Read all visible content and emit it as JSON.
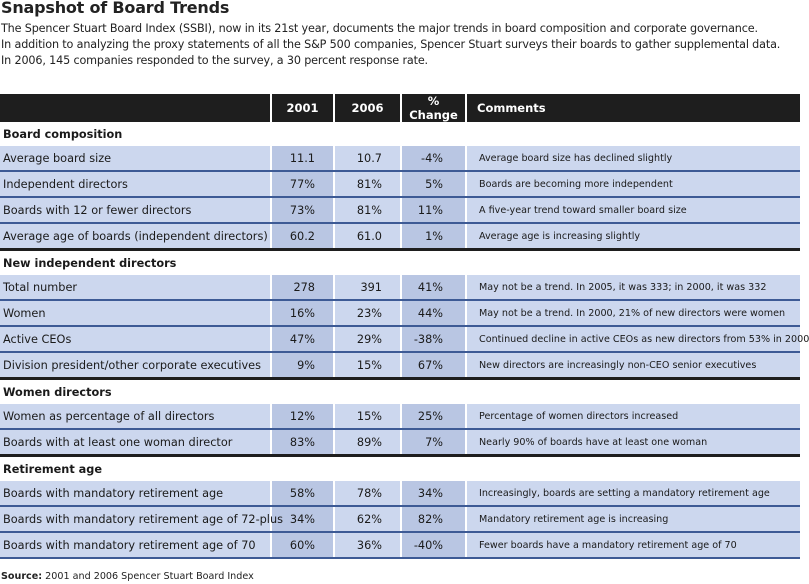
{
  "title": "Snapshot of Board Trends",
  "intro": [
    "The Spencer Stuart Board Index (SSBI), now in its 21st year, documents the major trends in board composition and corporate governance.",
    "In addition to analyzing the proxy statements of all the S&P 500 companies, Spencer Stuart surveys their boards to gather supplemental data.",
    "In 2006, 145 companies responded to the survey, a 30 percent response rate."
  ],
  "columns": [
    "",
    "2001",
    "2006",
    "% Change",
    "Comments"
  ],
  "sections": [
    {
      "heading": "Board composition",
      "rows": [
        {
          "label": "Average board size",
          "y2001": "11.1",
          "y2006": "10.7",
          "change": "-4%",
          "comment": "Average board size has declined slightly"
        },
        {
          "label": "Independent directors",
          "y2001": "77%",
          "y2006": "81%",
          "change": "5%",
          "comment": "Boards are becoming more independent"
        },
        {
          "label": "Boards with 12 or fewer directors",
          "y2001": "73%",
          "y2006": "81%",
          "change": "11%",
          "comment": "A five-year trend toward smaller board size"
        },
        {
          "label": "Average age of boards (independent directors)",
          "y2001": "60.2",
          "y2006": "61.0",
          "change": "1%",
          "comment": "Average age is increasing slightly"
        }
      ]
    },
    {
      "heading": "New independent directors",
      "rows": [
        {
          "label": "Total number",
          "y2001": "278",
          "y2006": "391",
          "change": "41%",
          "comment": "May not be a trend. In 2005, it was 333; in 2000, it was 332"
        },
        {
          "label": "Women",
          "y2001": "16%",
          "y2006": "23%",
          "change": "44%",
          "comment": "May not be a trend. In 2000, 21% of new directors were women"
        },
        {
          "label": "Active CEOs",
          "y2001": "47%",
          "y2006": "29%",
          "change": "-38%",
          "comment": "Continued decline in active CEOs as new directors from 53% in 2000"
        },
        {
          "label": "Division president/other corporate executives",
          "y2001": "9%",
          "y2006": "15%",
          "change": "67%",
          "comment": "New directors are increasingly non-CEO senior executives"
        }
      ]
    },
    {
      "heading": "Women directors",
      "rows": [
        {
          "label": "Women as percentage of all directors",
          "y2001": "12%",
          "y2006": "15%",
          "change": "25%",
          "comment": "Percentage of women directors increased"
        },
        {
          "label": "Boards with at least one woman director",
          "y2001": "83%",
          "y2006": "89%",
          "change": "7%",
          "comment": "Nearly 90% of boards have at least one woman"
        }
      ]
    },
    {
      "heading": "Retirement age",
      "rows": [
        {
          "label": "Boards with mandatory retirement age",
          "y2001": "58%",
          "y2006": "78%",
          "change": "34%",
          "comment": "Increasingly, boards are setting a mandatory retirement age"
        },
        {
          "label": "Boards with mandatory retirement age of 72-plus",
          "y2001": "34%",
          "y2006": "62%",
          "change": "82%",
          "comment": "Mandatory retirement age is increasing"
        },
        {
          "label": "Boards with mandatory retirement age of 70",
          "y2001": "60%",
          "y2006": "36%",
          "change": "-40%",
          "comment": "Fewer boards have a mandatory retirement age of 70"
        }
      ]
    }
  ],
  "source_label": "Source:",
  "source_text": "2001 and 2006 Spencer Stuart Board Index"
}
